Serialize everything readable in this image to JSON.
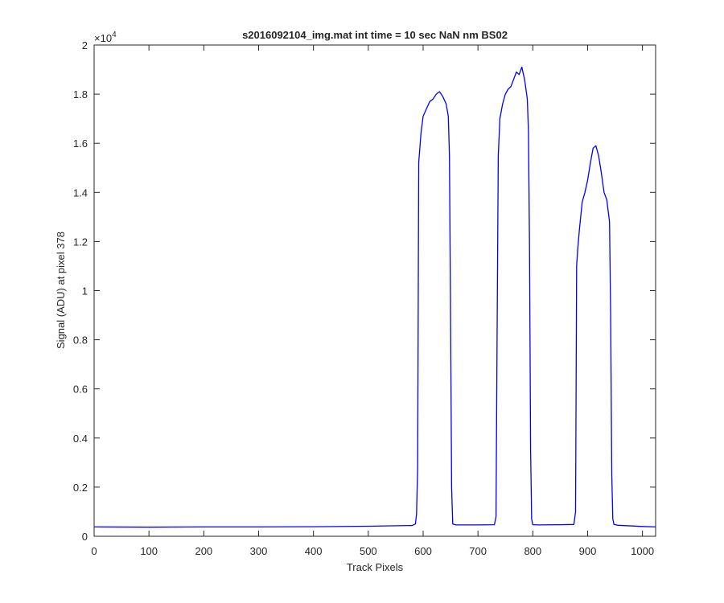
{
  "chart_data": {
    "type": "line",
    "title": "s2016092104_img.mat int time = 10 sec  NaN nm BS02",
    "xlabel": "Track Pixels",
    "ylabel": "Signal (ADU) at pixel 378",
    "xlim": [
      0,
      1024
    ],
    "ylim": [
      0,
      20000
    ],
    "y_exponent_label": "×10",
    "y_exponent_power": "4",
    "x_ticks": [
      0,
      100,
      200,
      300,
      400,
      500,
      600,
      700,
      800,
      900,
      1000
    ],
    "x_tick_labels": [
      "0",
      "100",
      "200",
      "300",
      "400",
      "500",
      "600",
      "700",
      "800",
      "900",
      "1000"
    ],
    "y_ticks": [
      0,
      2000,
      4000,
      6000,
      8000,
      10000,
      12000,
      14000,
      16000,
      18000,
      20000
    ],
    "y_tick_labels": [
      "0",
      "0.2",
      "0.4",
      "0.6",
      "0.8",
      "1",
      "1.2",
      "1.4",
      "1.6",
      "1.8",
      "2"
    ],
    "grid": false,
    "line_color": "#0000ff",
    "series": [
      {
        "x": [
          0,
          100,
          200,
          300,
          400,
          500,
          580,
          586,
          588,
          590,
          592,
          596,
          600,
          606,
          612,
          618,
          624,
          630,
          636,
          642,
          646,
          648,
          650,
          652,
          654,
          660,
          700,
          730,
          733,
          735,
          737,
          740,
          745,
          750,
          755,
          760,
          765,
          770,
          775,
          780,
          785,
          790,
          792,
          794,
          796,
          798,
          800,
          810,
          850,
          875,
          878,
          880,
          882,
          885,
          890,
          895,
          900,
          905,
          910,
          915,
          920,
          925,
          930,
          935,
          940,
          942,
          944,
          946,
          948,
          955,
          1000,
          1024
        ],
        "y": [
          380,
          370,
          380,
          380,
          390,
          410,
          440,
          500,
          900,
          2800,
          15200,
          16400,
          17100,
          17400,
          17700,
          17800,
          18000,
          18100,
          17900,
          17600,
          17100,
          15500,
          9000,
          2000,
          500,
          460,
          460,
          470,
          800,
          8500,
          15500,
          17000,
          17600,
          18000,
          18200,
          18300,
          18600,
          18900,
          18800,
          19100,
          18600,
          17800,
          16500,
          12000,
          3500,
          700,
          470,
          460,
          470,
          480,
          1000,
          11000,
          11700,
          12500,
          13600,
          14000,
          14500,
          15200,
          15800,
          15900,
          15500,
          14800,
          14000,
          13700,
          12800,
          9000,
          2500,
          700,
          480,
          450,
          400,
          380
        ]
      }
    ]
  }
}
